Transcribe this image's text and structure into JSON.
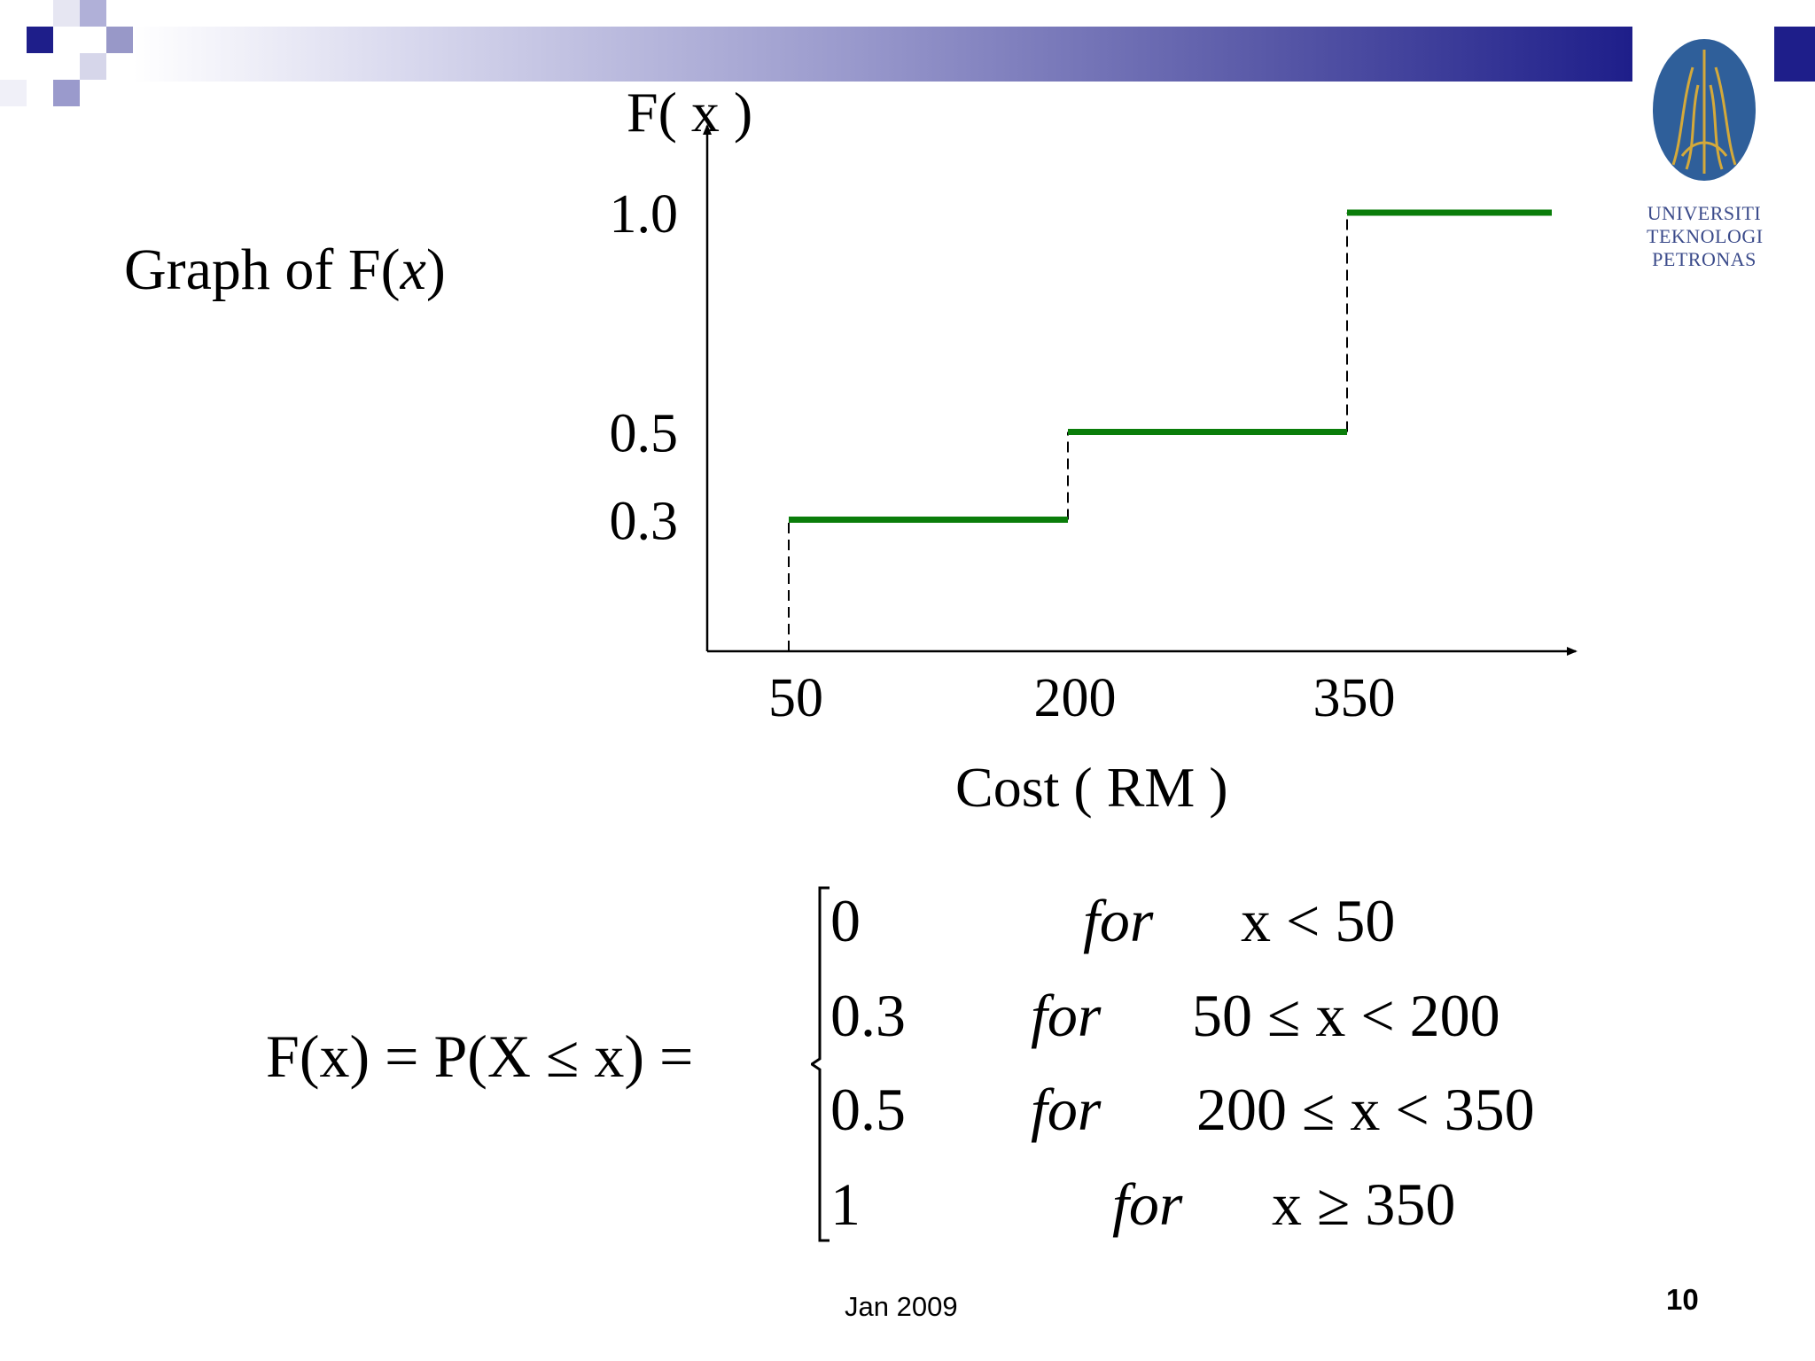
{
  "slide": {
    "side_title_prefix": "Graph of F(",
    "side_title_var": "x",
    "side_title_suffix": ")",
    "footer_date": "Jan 2009",
    "page_number": "10",
    "logo_lines": [
      "UNIVERSITI",
      "TEKNOLOGI",
      "PETRONAS"
    ],
    "colors": {
      "banner_dark": "#1e1e8a",
      "step_line": "#0a7d0a"
    }
  },
  "chart_data": {
    "type": "line",
    "step": true,
    "ylabel": "F( x )",
    "xlabel": "Cost ( RM )",
    "x_ticks": [
      "50",
      "200",
      "350"
    ],
    "y_ticks": [
      "0.3",
      "0.5",
      "1.0"
    ],
    "series": [
      {
        "segments": [
          {
            "x_start": 50,
            "x_end": 200,
            "y": 0.3
          },
          {
            "x_start": 200,
            "x_end": 350,
            "y": 0.5
          },
          {
            "x_start": 350,
            "x_end": 460,
            "y": 1.0
          }
        ]
      }
    ],
    "jumps": [
      50,
      200,
      350
    ],
    "xlim": [
      0,
      480
    ],
    "ylim": [
      0,
      1.0
    ],
    "grid": false
  },
  "formula": {
    "lhs": "F(x) = P(X ≤  x) =",
    "cases": [
      {
        "value": "0",
        "for": "for",
        "cond": "x < 50"
      },
      {
        "value": "0.3",
        "for": "for",
        "cond": "50 ≤ x < 200"
      },
      {
        "value": "0.5",
        "for": "for",
        "cond": "200 ≤ x < 350"
      },
      {
        "value": "1",
        "for": "for",
        "cond": "x ≥ 350"
      }
    ]
  }
}
